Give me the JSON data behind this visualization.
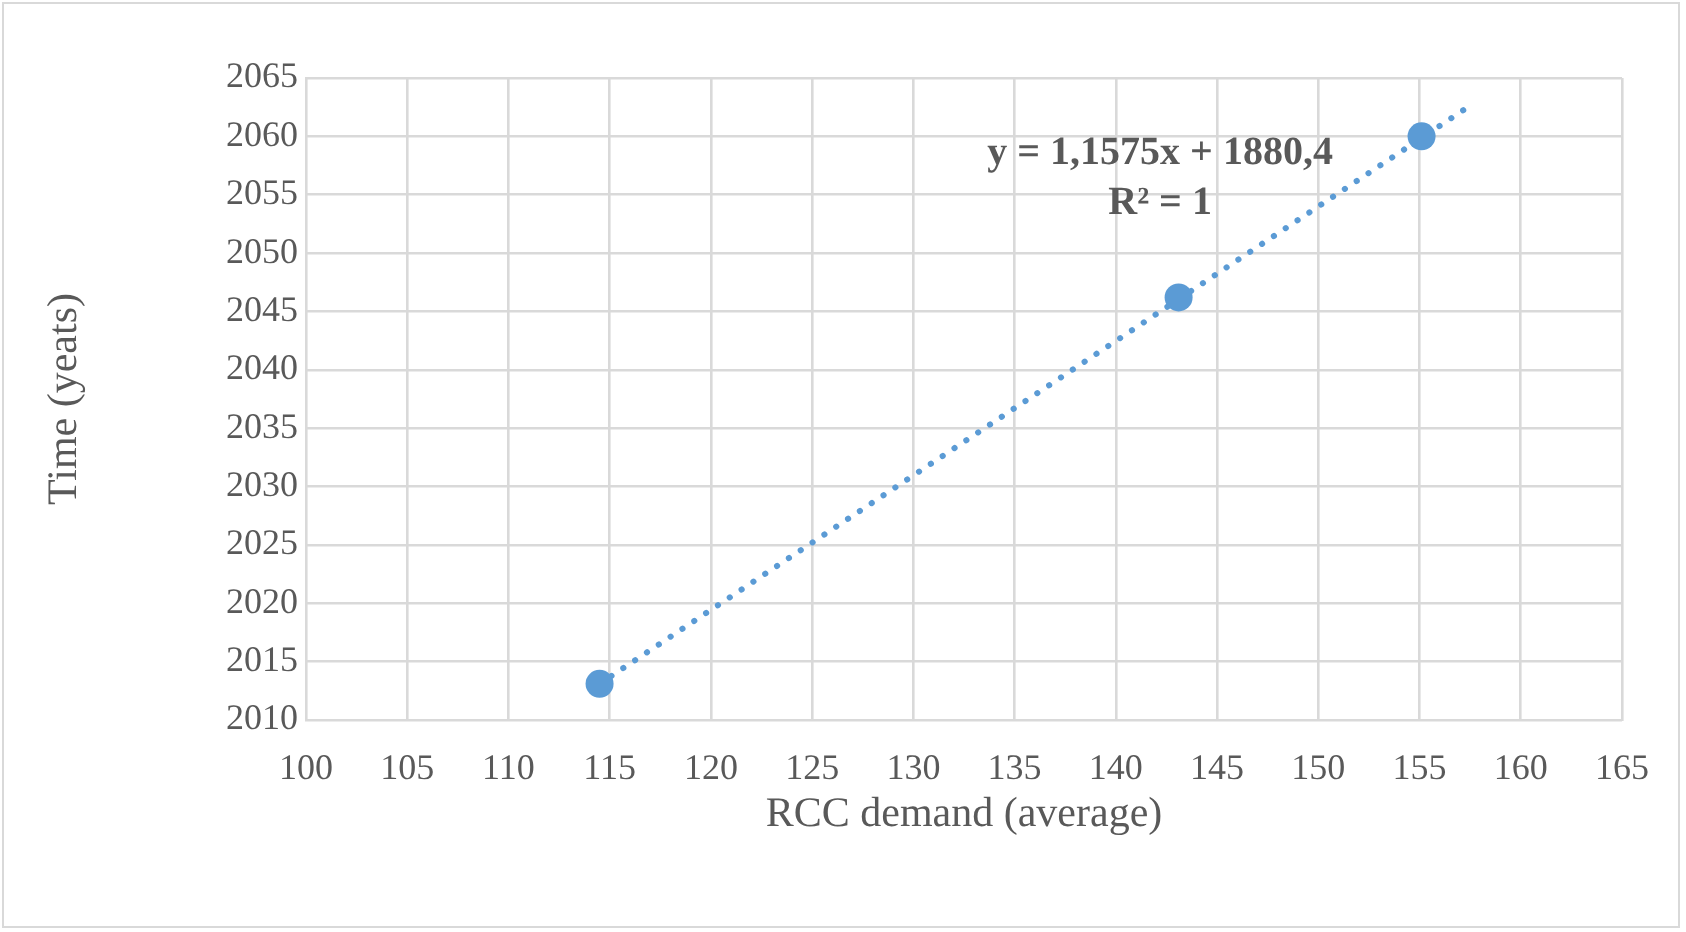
{
  "chart_data": {
    "type": "scatter",
    "xlabel": "RCC demand (average)",
    "ylabel": "Time (yeats)",
    "xlim": [
      100,
      165
    ],
    "xticks": [
      100,
      105,
      110,
      115,
      120,
      125,
      130,
      135,
      140,
      145,
      150,
      155,
      160,
      165
    ],
    "ylim": [
      2010,
      2065
    ],
    "yticks": [
      2010,
      2015,
      2020,
      2025,
      2030,
      2035,
      2040,
      2045,
      2050,
      2055,
      2060,
      2065
    ],
    "grid": true,
    "legend": false,
    "marker": "circle",
    "series": [
      {
        "type": "scatter",
        "color": "#5b9bd5",
        "x": [
          114.5,
          143.1,
          155.1
        ],
        "values": [
          2013.1,
          2046.2,
          2060
        ]
      },
      {
        "type": "line",
        "color": "#5b9bd5",
        "line_style": "dotted",
        "marker": "none",
        "x": [
          114.5,
          157.3
        ],
        "values": [
          2013.1,
          2062.4
        ]
      }
    ],
    "annotations": [
      "y = 1,1575x + 1880,4",
      "R² = 1"
    ]
  }
}
